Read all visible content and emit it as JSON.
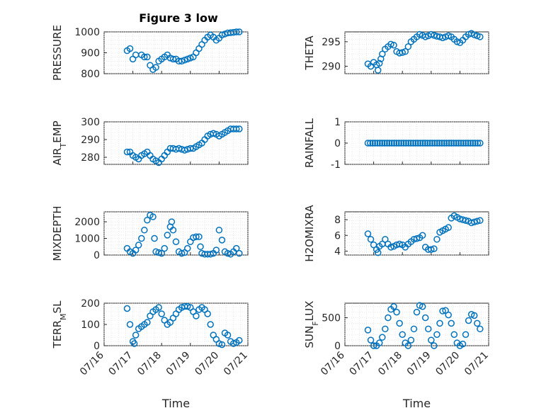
{
  "figure": {
    "title": "Figure 3 low"
  },
  "chart_data": [
    {
      "id": "pressure",
      "type": "scatter",
      "ylabel": "PRESSURE",
      "ylim": [
        800,
        1000
      ],
      "yticks": [
        800,
        900,
        1000
      ],
      "x": [
        16.8,
        16.9,
        17.0,
        17.1,
        17.3,
        17.4,
        17.5,
        17.6,
        17.7,
        17.8,
        17.9,
        18.0,
        18.1,
        18.2,
        18.3,
        18.4,
        18.5,
        18.6,
        18.7,
        18.8,
        18.9,
        19.0,
        19.1,
        19.2,
        19.3,
        19.4,
        19.5,
        19.6,
        19.7,
        19.8,
        19.9,
        20.0,
        20.1,
        20.2,
        20.3,
        20.4,
        20.5,
        20.6,
        20.7
      ],
      "y": [
        910,
        920,
        870,
        890,
        890,
        880,
        880,
        840,
        820,
        830,
        860,
        870,
        880,
        890,
        875,
        870,
        870,
        860,
        860,
        865,
        870,
        875,
        880,
        900,
        920,
        940,
        960,
        975,
        985,
        975,
        960,
        970,
        985,
        990,
        995,
        996,
        998,
        1000,
        1000
      ]
    },
    {
      "id": "theta",
      "type": "scatter",
      "ylabel": "THETA",
      "ylim": [
        288.5,
        297
      ],
      "yticks": [
        290,
        295
      ],
      "x": [
        16.8,
        16.9,
        17.0,
        17.1,
        17.15,
        17.2,
        17.25,
        17.3,
        17.4,
        17.5,
        17.6,
        17.7,
        17.8,
        17.9,
        18.0,
        18.1,
        18.2,
        18.3,
        18.4,
        18.5,
        18.6,
        18.7,
        18.8,
        18.9,
        19.0,
        19.1,
        19.2,
        19.3,
        19.4,
        19.5,
        19.6,
        19.7,
        19.8,
        19.9,
        20.0,
        20.1,
        20.2,
        20.3,
        20.4,
        20.5,
        20.6,
        20.7
      ],
      "y": [
        290.5,
        290,
        290.8,
        290.3,
        289.2,
        290.6,
        291.5,
        292.5,
        293.5,
        294,
        294.5,
        294.3,
        293,
        292.7,
        292.8,
        293,
        294,
        295,
        295.5,
        296,
        296.5,
        296.3,
        296,
        296.2,
        296.5,
        296.3,
        296.1,
        296,
        295.8,
        296,
        296.2,
        296,
        295.5,
        295,
        294.8,
        295.3,
        296,
        296.5,
        296.7,
        296.4,
        296.2,
        296
      ]
    },
    {
      "id": "air_temp",
      "type": "scatter",
      "ylabel": "AIR_TEMP",
      "ylim": [
        276,
        300
      ],
      "yticks": [
        280,
        290,
        300
      ],
      "x": [
        16.8,
        16.9,
        17.0,
        17.1,
        17.2,
        17.3,
        17.4,
        17.5,
        17.6,
        17.7,
        17.8,
        17.9,
        18.0,
        18.1,
        18.2,
        18.3,
        18.4,
        18.5,
        18.6,
        18.7,
        18.8,
        18.9,
        19.0,
        19.1,
        19.2,
        19.3,
        19.4,
        19.5,
        19.6,
        19.7,
        19.8,
        19.9,
        20.0,
        20.1,
        20.2,
        20.3,
        20.4,
        20.5,
        20.6,
        20.7
      ],
      "y": [
        283,
        283,
        281,
        280,
        279,
        281,
        282,
        283,
        281,
        279,
        278,
        277,
        279,
        281,
        283,
        285,
        285,
        284.5,
        285,
        284.5,
        284,
        284.5,
        285,
        285,
        286,
        287,
        288,
        290,
        292,
        293,
        293.5,
        293,
        292,
        293,
        294,
        295,
        296,
        296,
        296,
        296
      ]
    },
    {
      "id": "rainfall",
      "type": "scatter",
      "ylabel": "RAINFALL",
      "ylim": [
        -1,
        1
      ],
      "yticks": [
        -1,
        0,
        1
      ],
      "xrange": [
        16.8,
        20.7
      ],
      "npoints": 48,
      "constant": 0
    },
    {
      "id": "mixdepth",
      "type": "scatter",
      "ylabel": "MIXDEPTH",
      "ylim": [
        0,
        2600
      ],
      "yticks": [
        0,
        1000,
        2000
      ],
      "x": [
        16.8,
        16.9,
        17.0,
        17.1,
        17.2,
        17.3,
        17.4,
        17.5,
        17.6,
        17.7,
        17.75,
        17.8,
        17.9,
        18.0,
        18.1,
        18.2,
        18.3,
        18.35,
        18.4,
        18.5,
        18.6,
        18.7,
        18.8,
        18.9,
        19.0,
        19.1,
        19.2,
        19.3,
        19.35,
        19.4,
        19.5,
        19.6,
        19.7,
        19.8,
        19.9,
        20.0,
        20.1,
        20.2,
        20.3,
        20.4,
        20.5,
        20.6,
        20.7
      ],
      "y": [
        400,
        200,
        100,
        300,
        600,
        1000,
        1500,
        2100,
        2400,
        2300,
        1000,
        200,
        150,
        100,
        400,
        1200,
        1700,
        2000,
        1500,
        800,
        200,
        100,
        150,
        400,
        800,
        1050,
        1100,
        1100,
        500,
        100,
        50,
        50,
        50,
        100,
        300,
        1500,
        900,
        200,
        100,
        50,
        200,
        400,
        100
      ]
    },
    {
      "id": "h2omixra",
      "type": "scatter",
      "ylabel": "H2OMIXRA",
      "ylim": [
        3.5,
        9
      ],
      "yticks": [
        4,
        6,
        8
      ],
      "x": [
        16.8,
        16.9,
        17.0,
        17.1,
        17.15,
        17.2,
        17.3,
        17.4,
        17.5,
        17.6,
        17.7,
        17.8,
        17.9,
        18.0,
        18.1,
        18.2,
        18.3,
        18.4,
        18.5,
        18.6,
        18.7,
        18.8,
        18.9,
        19.0,
        19.1,
        19.2,
        19.3,
        19.4,
        19.5,
        19.6,
        19.7,
        19.8,
        19.9,
        20.0,
        20.1,
        20.2,
        20.3,
        20.4,
        20.5,
        20.6,
        20.7
      ],
      "y": [
        6.2,
        5.5,
        4.8,
        4.2,
        3.8,
        4.6,
        4.9,
        5.5,
        4.9,
        4.5,
        4.6,
        4.8,
        4.9,
        4.8,
        4.5,
        4.9,
        5.2,
        5.5,
        5.6,
        5.7,
        6,
        4.5,
        4.2,
        4.2,
        4.3,
        5.5,
        6.4,
        6.6,
        6.8,
        7,
        8.2,
        8.5,
        8.3,
        8.1,
        8,
        7.9,
        7.8,
        7.6,
        7.7,
        7.8,
        7.9
      ]
    },
    {
      "id": "terr_msl",
      "type": "scatter",
      "ylabel": "TERR_MSL",
      "ylim": [
        0,
        200
      ],
      "yticks": [
        0,
        100,
        200
      ],
      "x": [
        16.8,
        16.9,
        17.0,
        17.05,
        17.1,
        17.2,
        17.3,
        17.4,
        17.5,
        17.6,
        17.7,
        17.8,
        17.9,
        18.0,
        18.1,
        18.2,
        18.3,
        18.4,
        18.5,
        18.6,
        18.7,
        18.8,
        18.9,
        19.0,
        19.1,
        19.2,
        19.3,
        19.4,
        19.5,
        19.6,
        19.7,
        19.8,
        19.9,
        20.0,
        20.1,
        20.2,
        20.3,
        20.4,
        20.5,
        20.6,
        20.7
      ],
      "y": [
        175,
        100,
        20,
        10,
        50,
        80,
        90,
        100,
        110,
        140,
        160,
        170,
        180,
        150,
        120,
        100,
        110,
        130,
        150,
        170,
        180,
        185,
        185,
        180,
        160,
        140,
        170,
        180,
        170,
        150,
        100,
        50,
        30,
        10,
        5,
        60,
        50,
        20,
        10,
        15,
        25
      ]
    },
    {
      "id": "sun_flux",
      "type": "scatter",
      "ylabel": "SUN_FLUX",
      "ylim": [
        0,
        760
      ],
      "yticks": [
        0,
        500
      ],
      "x": [
        16.8,
        16.9,
        17.0,
        17.1,
        17.2,
        17.3,
        17.4,
        17.5,
        17.6,
        17.7,
        17.8,
        17.9,
        18.0,
        18.1,
        18.2,
        18.3,
        18.4,
        18.5,
        18.6,
        18.7,
        18.8,
        18.9,
        19.0,
        19.1,
        19.2,
        19.3,
        19.4,
        19.5,
        19.6,
        19.7,
        19.8,
        19.9,
        20.0,
        20.1,
        20.2,
        20.3,
        20.4,
        20.5,
        20.6,
        20.7
      ],
      "y": [
        280,
        100,
        0,
        0,
        50,
        150,
        300,
        500,
        650,
        700,
        600,
        400,
        200,
        50,
        0,
        100,
        300,
        600,
        720,
        700,
        500,
        300,
        100,
        0,
        200,
        400,
        620,
        630,
        550,
        400,
        200,
        50,
        0,
        30,
        200,
        450,
        560,
        540,
        400,
        300
      ]
    }
  ],
  "shared_x": {
    "label": "Time",
    "xlim": [
      16,
      21
    ],
    "ticks": [
      16,
      17,
      18,
      19,
      20,
      21
    ],
    "tick_labels": [
      "07/16",
      "07/17",
      "07/18",
      "07/19",
      "07/20",
      "07/21"
    ]
  },
  "colors": {
    "marker": "#0072BD",
    "grid": "#d9d9d9",
    "axis": "#262626"
  }
}
